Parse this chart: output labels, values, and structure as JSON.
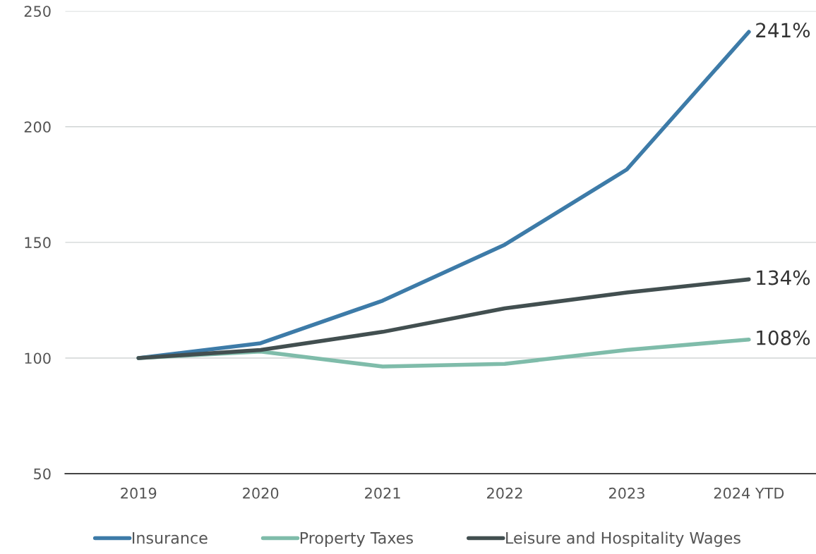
{
  "chart_data": {
    "type": "line",
    "categories": [
      "2019",
      "2020",
      "2021",
      "2022",
      "2023",
      "2024 YTD"
    ],
    "series": [
      {
        "name": "Insurance",
        "color": "#3d7ba8",
        "values": [
          100,
          106.4,
          124.8,
          149,
          181.5,
          241
        ]
      },
      {
        "name": "Property Taxes",
        "color": "#7fbcaa",
        "values": [
          100,
          102.8,
          96.3,
          97.5,
          103.5,
          108
        ]
      },
      {
        "name": "Leisure and Hospitality Wages",
        "color": "#424f50",
        "values": [
          100,
          103.5,
          111.3,
          121.5,
          128.3,
          134
        ]
      }
    ],
    "annotations": [
      {
        "text": "241%",
        "x": "2024 YTD",
        "y": 241
      },
      {
        "text": "134%",
        "x": "2024 YTD",
        "y": 134
      },
      {
        "text": "108%",
        "x": "2024 YTD",
        "y": 108
      }
    ],
    "ylim": [
      50,
      250
    ],
    "yticks": [
      50,
      100,
      150,
      200,
      250
    ],
    "grid": "y",
    "legend": "bottom",
    "marker": "none",
    "line_style": "solid"
  }
}
